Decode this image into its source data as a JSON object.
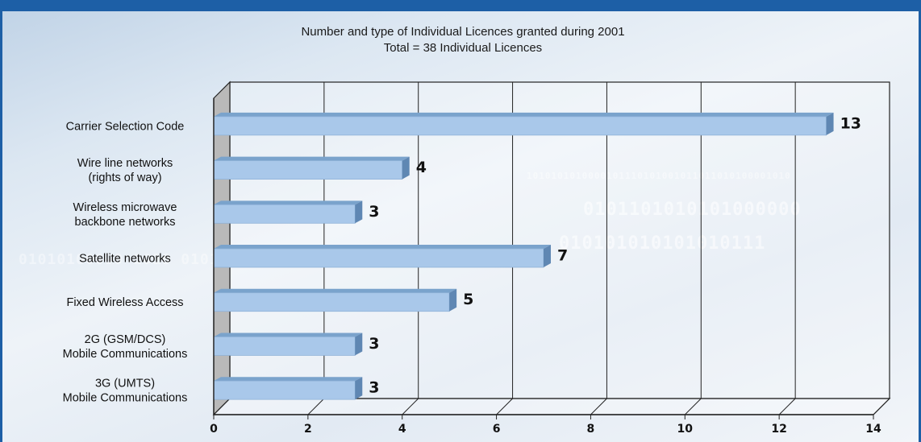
{
  "chart_data": {
    "type": "bar",
    "orientation": "horizontal",
    "title": "Number and type of Individual Licences granted during 2001",
    "subtitle": "Total = 38 Individual Licences",
    "categories": [
      [
        "Carrier Selection Code"
      ],
      [
        "Wire line networks",
        "(rights of way)"
      ],
      [
        "Wireless microwave",
        "backbone networks"
      ],
      [
        "Satellite networks"
      ],
      [
        "Fixed Wireless Access"
      ],
      [
        "2G (GSM/DCS)",
        "Mobile Communications"
      ],
      [
        "3G (UMTS)",
        "Mobile Communications"
      ]
    ],
    "values": [
      13,
      4,
      3,
      7,
      5,
      3,
      3
    ],
    "value_labels": [
      "13",
      "4",
      "3",
      "7",
      "5",
      "3",
      "3"
    ],
    "xlim": [
      0,
      14
    ],
    "xticks": [
      "0",
      "2",
      "4",
      "6",
      "8",
      "10",
      "12",
      "14"
    ],
    "grid": true,
    "style": "3d",
    "colors": {
      "bar": "#a9c8ea",
      "bar_top": "#7aa3cc",
      "bar_side": "#5f87b3",
      "frame": "#1d5fa6"
    }
  }
}
